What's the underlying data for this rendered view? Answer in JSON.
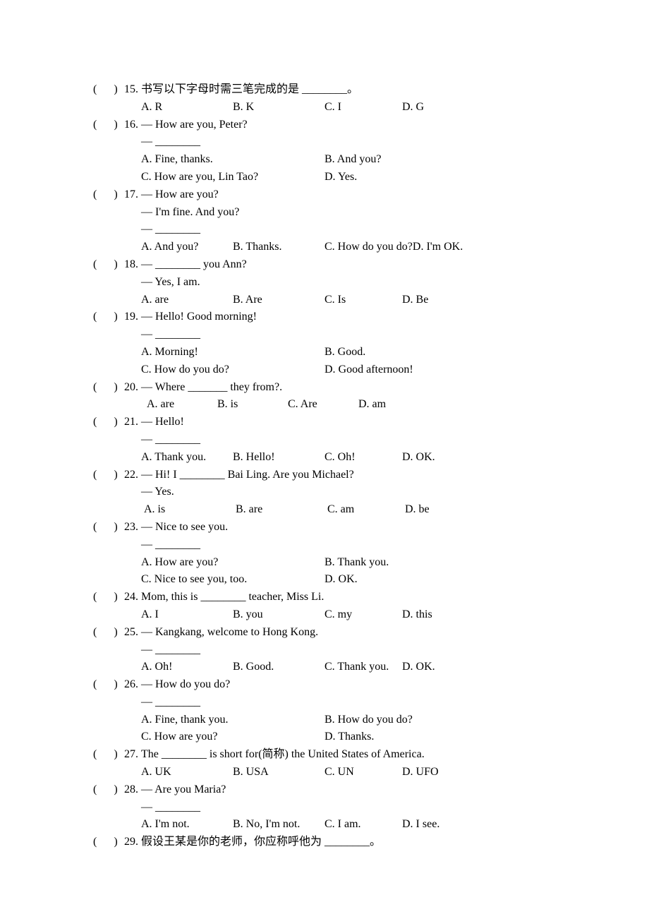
{
  "text_color": "#000000",
  "background_color": "#ffffff",
  "font_family": "Times New Roman",
  "base_fontsize": 16,
  "questions": [
    {
      "num": "15.",
      "stem_lines": [
        "书写以下字母时需三笔完成的是 ________。"
      ],
      "options_layout": "4",
      "options": [
        "A. R",
        "B. K",
        "C. I",
        "D. G"
      ]
    },
    {
      "num": "16.",
      "stem_lines": [
        "— How are you, Peter?",
        "— ________"
      ],
      "options_layout": "2x2",
      "options": [
        "A. Fine, thanks.",
        "B. And you?",
        "C. How are you, Lin Tao?",
        "D. Yes."
      ]
    },
    {
      "num": "17.",
      "stem_lines": [
        "— How are you?",
        "— I'm fine. And you?",
        "— ________"
      ],
      "options_layout": "4",
      "options": [
        "A. And you?",
        "B. Thanks.",
        "C. How do you do?",
        "D. I'm OK."
      ]
    },
    {
      "num": "18.",
      "stem_lines": [
        "— ________ you Ann?",
        "— Yes, I am."
      ],
      "options_layout": "4",
      "options": [
        "A. are",
        "B. Are",
        "C. Is",
        "D. Be"
      ]
    },
    {
      "num": "19.",
      "stem_lines": [
        "— Hello! Good morning!",
        "— ________"
      ],
      "options_layout": "2x2",
      "options": [
        "A. Morning!",
        "B. Good.",
        "C. How do you do?",
        "D. Good afternoon!"
      ]
    },
    {
      "num": "20.",
      "stem_lines": [
        "— Where _______ they from?."
      ],
      "options_layout": "4-narrow",
      "options": [
        "A. are",
        "B. is",
        "C. Are",
        "D. am"
      ]
    },
    {
      "num": "21.",
      "stem_lines": [
        "— Hello!",
        "— ________"
      ],
      "options_layout": "4",
      "options": [
        "A. Thank you.",
        "B. Hello!",
        "C. Oh!",
        "D. OK."
      ]
    },
    {
      "num": "22.",
      "stem_lines": [
        "— Hi! I ________ Bai Ling. Are you Michael?",
        "— Yes."
      ],
      "options_layout": "4-pad",
      "options": [
        "A. is",
        "B. are",
        "C. am",
        "D. be"
      ]
    },
    {
      "num": "23.",
      "stem_lines": [
        "— Nice to see you.",
        "— ________"
      ],
      "options_layout": "2x2",
      "options": [
        "A. How are you?",
        "B. Thank you.",
        "C. Nice to see you, too.",
        "D. OK."
      ]
    },
    {
      "num": "24.",
      "stem_lines": [
        "Mom, this is ________ teacher, Miss Li."
      ],
      "options_layout": "4",
      "options": [
        "A. I",
        "B. you",
        "C. my",
        "D. this"
      ]
    },
    {
      "num": "25.",
      "stem_lines": [
        "— Kangkang, welcome to Hong Kong.",
        "— ________"
      ],
      "options_layout": "4",
      "options": [
        "A. Oh!",
        "B. Good.",
        "C. Thank you.",
        "D. OK."
      ]
    },
    {
      "num": "26.",
      "stem_lines": [
        "— How do you do?",
        "— ________"
      ],
      "options_layout": "2x2",
      "options": [
        "A. Fine, thank you.",
        "B. How do you do?",
        "C. How are you?",
        "D. Thanks."
      ]
    },
    {
      "num": "27.",
      "stem_lines": [
        "The ________ is short for(简称) the United States of America."
      ],
      "options_layout": "4",
      "options": [
        "A. UK",
        "B. USA",
        "C. UN",
        "D. UFO"
      ]
    },
    {
      "num": "28.",
      "stem_lines": [
        "— Are you Maria?",
        "— ________"
      ],
      "options_layout": "4",
      "options": [
        "A. I'm not.",
        "B. No, I'm not.",
        "C. I am.",
        "D. I see."
      ]
    },
    {
      "num": "29.",
      "stem_lines": [
        "假设王某是你的老师，你应称呼他为 ________。"
      ],
      "options_layout": "none",
      "options": []
    }
  ]
}
